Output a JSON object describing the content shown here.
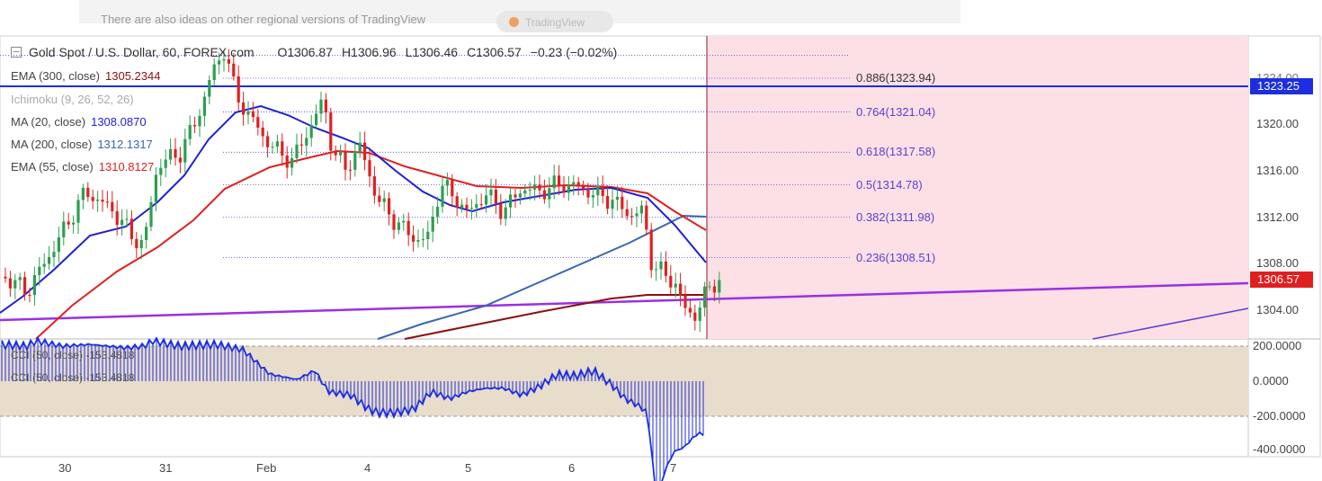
{
  "header": {
    "notice": "There are also ideas on other regional versions of TradingView",
    "button_label": "TradingView"
  },
  "chart_title": {
    "symbol": "Gold Spot / U.S. Dollar, 60, FOREX.com",
    "open": "O1306.87",
    "high": "H1306.96",
    "low": "L1306.46",
    "close": "C1306.57",
    "change": "−0.23 (−0.02%)"
  },
  "indicators": [
    {
      "label": "EMA (300, close)",
      "value": "1305.2344",
      "color": "#8b1010"
    },
    {
      "label": "Ichimoku (9, 26, 52, 26)",
      "value": "",
      "color": "#aaaaaa"
    },
    {
      "label": "MA (20, close)",
      "value": "1308.0870",
      "color": "#1f1fd6"
    },
    {
      "label": "MA (200, close)",
      "value": "1312.1317",
      "color": "#3b65b0"
    },
    {
      "label": "EMA (55, close)",
      "value": "1310.8127",
      "color": "#e02020"
    }
  ],
  "cci_legend": [
    {
      "label": "CCI (50, close)",
      "value": "-153.4818"
    },
    {
      "label": "CCI (50, close)",
      "value": "-153.4818"
    }
  ],
  "fib_levels": [
    {
      "label": "0.886(1323.94)",
      "price": 1323.94
    },
    {
      "label": "0.764(1321.04)",
      "price": 1321.04
    },
    {
      "label": "0.618(1317.58)",
      "price": 1317.58
    },
    {
      "label": "0.5(1314.78)",
      "price": 1314.78
    },
    {
      "label": "0.382(1311.98)",
      "price": 1311.98
    },
    {
      "label": "0.236(1308.51)",
      "price": 1308.51
    }
  ],
  "price_axis": {
    "ticks": [
      "1320.00",
      "1316.00",
      "1312.00",
      "1308.00",
      "1304.00"
    ],
    "top_partial": "1324.00",
    "badge_blue": "1323.25",
    "badge_red": "1306.57"
  },
  "cci_axis": {
    "ticks": [
      "200.0000",
      "0.0000",
      "-200.0000",
      "-400.0000"
    ]
  },
  "x_axis": {
    "ticks": [
      "30",
      "31",
      "Feb",
      "4",
      "5",
      "6",
      "7"
    ]
  },
  "colors": {
    "bull": "#2e9e4f",
    "bear": "#e02020",
    "ma20": "#1f1fd6",
    "ema55": "#e02020",
    "ma200": "#3b65b0",
    "ema300": "#8b1010",
    "resistance": "#1c2ee0",
    "trendline": "#9b30e0",
    "fib": "#5b3fd0",
    "future_zone": "#fde0e6",
    "cci_band": "#e8dccb"
  },
  "chart_data": {
    "type": "candlestick",
    "title": "Gold Spot / U.S. Dollar, 60, FOREX.com",
    "x_ticks": [
      "30",
      "31",
      "Feb",
      "4",
      "5",
      "6",
      "7"
    ],
    "y_range": [
      1301.2,
      1327.1
    ],
    "horizontal_line": 1323.25,
    "last_price": 1306.57,
    "ohlc": {
      "open": 1306.87,
      "high": 1306.96,
      "low": 1306.46,
      "close": 1306.57,
      "change": -0.23
    },
    "ma_20": [
      1302.0,
      1304.5,
      1307.3,
      1312.0,
      1320.5,
      1319.4,
      1314.2,
      1312.5,
      1313.3,
      1314.2,
      1314.5,
      1314.0,
      1311.2,
      1307.7
    ],
    "ema_55": [
      1298.3,
      1304.0,
      1312.7,
      1316.5,
      1318.2,
      1317.2,
      1315.2,
      1314.6,
      1314.5,
      1314.5,
      1310.7
    ],
    "ma_200": [
      1298.0,
      1303.5,
      1306.2,
      1309.0,
      1312.0
    ],
    "ema_300": [
      1299.0,
      1302.8,
      1305.2
    ],
    "cci": [
      120,
      160,
      110,
      60,
      30,
      80,
      -30,
      -110,
      -180,
      -120,
      -50,
      10,
      30,
      40,
      0,
      -60,
      -250,
      -360,
      -120
    ]
  }
}
